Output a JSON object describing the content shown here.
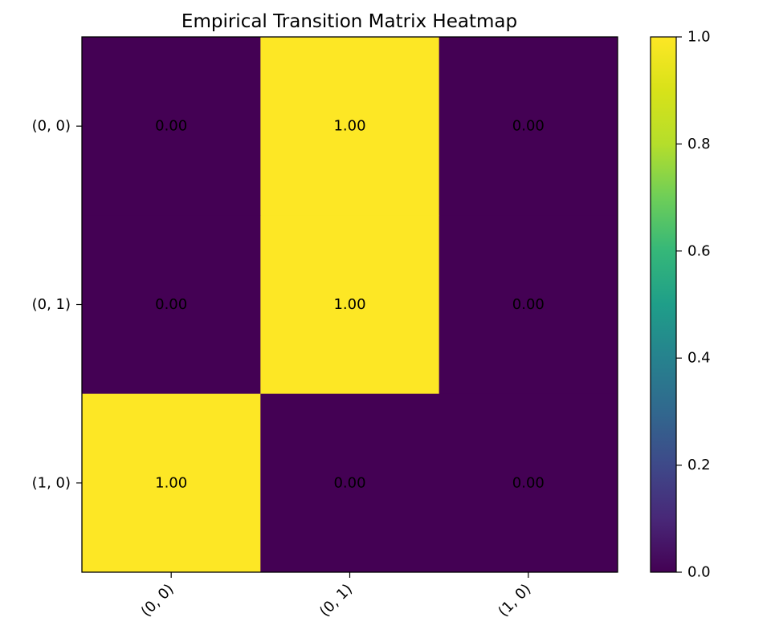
{
  "chart_data": {
    "type": "heatmap",
    "title": "Empirical Transition Matrix Heatmap",
    "xlabel": "",
    "ylabel": "",
    "x_categories": [
      "(0, 0)",
      "(0, 1)",
      "(1, 0)"
    ],
    "y_categories": [
      "(0, 0)",
      "(0, 1)",
      "(1, 0)"
    ],
    "values": [
      [
        0.0,
        1.0,
        0.0
      ],
      [
        0.0,
        1.0,
        0.0
      ],
      [
        1.0,
        0.0,
        0.0
      ]
    ],
    "value_labels": [
      [
        "0.00",
        "1.00",
        "0.00"
      ],
      [
        "0.00",
        "1.00",
        "0.00"
      ],
      [
        "1.00",
        "0.00",
        "0.00"
      ]
    ],
    "colorbar": {
      "range": [
        0.0,
        1.0
      ],
      "ticks": [
        0.0,
        0.2,
        0.4,
        0.6,
        0.8,
        1.0
      ],
      "tick_labels": [
        "0.0",
        "0.2",
        "0.4",
        "0.6",
        "0.8",
        "1.0"
      ],
      "colormap": "viridis",
      "low_color": "#440154",
      "high_color": "#fde725"
    },
    "x_tick_rotation_deg": 45,
    "grid": false
  }
}
